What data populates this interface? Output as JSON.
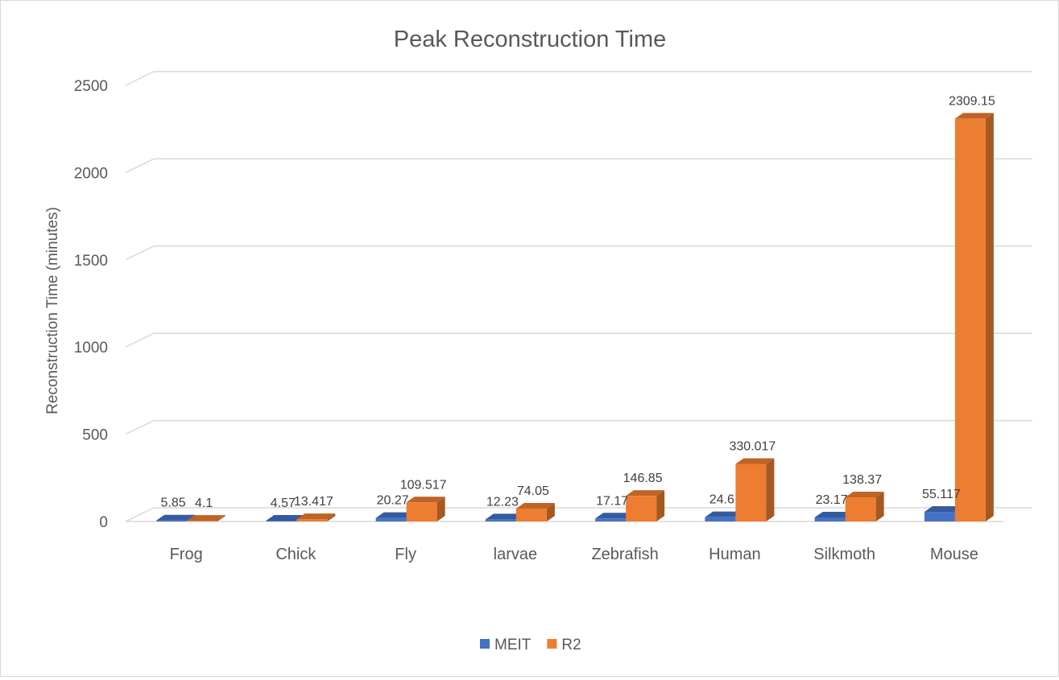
{
  "chart_data": {
    "type": "bar",
    "title": "Peak Reconstruction Time",
    "xlabel": "",
    "ylabel": "Reconstruction Time (minutes)",
    "ylim": [
      0,
      2500
    ],
    "yticks": [
      0,
      500,
      1000,
      1500,
      2000,
      2500
    ],
    "grid": true,
    "legend_position": "bottom",
    "style": "3d-clustered-column",
    "categories": [
      "Frog",
      "Chick",
      "Fly",
      "larvae",
      "Zebrafish",
      "Human",
      "Silkmoth",
      "Mouse"
    ],
    "series": [
      {
        "name": "MEIT",
        "color": "#4472c4",
        "values": [
          5.85,
          4.57,
          20.27,
          12.23,
          17.17,
          24.6,
          23.17,
          55.117
        ],
        "labels": [
          "5.85",
          "4.57",
          "20.27",
          "12.23",
          "17.17",
          "24.6",
          "23.17",
          "55.117"
        ]
      },
      {
        "name": "R2",
        "color": "#ed7d31",
        "values": [
          4.1,
          13.417,
          109.517,
          74.05,
          146.85,
          330.017,
          138.37,
          2309.15
        ],
        "labels": [
          "4.1",
          "13.417",
          "109.517",
          "74.05",
          "146.85",
          "330.017",
          "138.37",
          "2309.15"
        ]
      }
    ]
  }
}
